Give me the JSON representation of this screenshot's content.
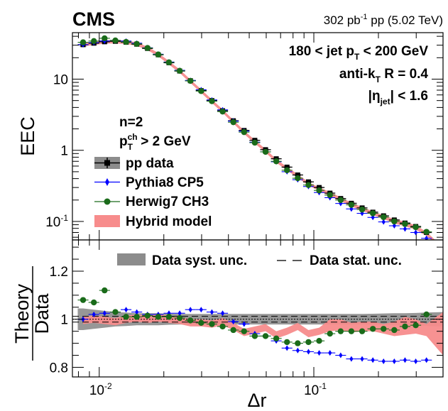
{
  "chart_data": {
    "type": "scatter",
    "experiment": "CMS",
    "lumi": {
      "value": "302 pb",
      "exp": "-1",
      "rest": " pp (5.02 TeV)"
    },
    "selection": {
      "pt_range": {
        "left": "180 < jet p",
        "sub": "T",
        "right": " < 200 GeV"
      },
      "algo": {
        "left": "anti-k",
        "sub": "T",
        "right": " R = 0.4"
      },
      "eta": {
        "left": "|η",
        "sub": "jet",
        "right": "| < 1.6"
      }
    },
    "n_label": "n=2",
    "ptch_label": {
      "p": "p",
      "sup": "ch",
      "sub": "T",
      "rest": " > 2 GeV"
    },
    "legend": [
      {
        "name": "pp data",
        "color": "#000000",
        "style": "data"
      },
      {
        "name": "Pythia8 CP5",
        "color": "#0000ff",
        "style": "diamond"
      },
      {
        "name": "Herwig7 CH3",
        "color": "#1a6b1a",
        "style": "circle"
      },
      {
        "name": "Hybrid model",
        "color": "#f78c8c",
        "style": "band"
      }
    ],
    "legend_ratio": [
      {
        "name": "Data syst. unc.",
        "style": "gray-band"
      },
      {
        "name": "Data stat. unc.",
        "style": "dash"
      }
    ],
    "xlabel": "Δr",
    "ylabel_top": "EEC",
    "ylabel_ratio": {
      "num": "Theory",
      "den": "Data"
    },
    "xlim": [
      0.0075,
      0.4
    ],
    "ylim_top": [
      0.055,
      45
    ],
    "ylim_ratio": [
      0.76,
      1.33
    ],
    "x_ticks": [
      {
        "v": 0.01,
        "base": "10",
        "exp": "-2"
      },
      {
        "v": 0.1,
        "base": "10",
        "exp": "-1"
      }
    ],
    "y_ticks_top": [
      {
        "v": 0.1,
        "base": "10",
        "exp": "-1"
      },
      {
        "v": 1,
        "label": "1"
      },
      {
        "v": 10,
        "label": "10"
      }
    ],
    "y_ticks_ratio": [
      {
        "v": 0.8,
        "label": "0.8"
      },
      {
        "v": 1,
        "label": "1"
      },
      {
        "v": 1.2,
        "label": "1.2"
      }
    ],
    "bins": [
      0.00794,
      0.00891,
      0.01,
      0.01122,
      0.01259,
      0.01413,
      0.01585,
      0.01778,
      0.01995,
      0.02239,
      0.02512,
      0.02818,
      0.03162,
      0.03548,
      0.03981,
      0.04467,
      0.05012,
      0.05623,
      0.0631,
      0.07079,
      0.07943,
      0.08913,
      0.1,
      0.1122,
      0.1259,
      0.1413,
      0.1585,
      0.1778,
      0.1995,
      0.2239,
      0.2512,
      0.2818,
      0.3162,
      0.3548
    ],
    "x": [
      0.00841,
      0.00944,
      0.01059,
      0.01189,
      0.01334,
      0.01496,
      0.01679,
      0.01884,
      0.02113,
      0.02371,
      0.0266,
      0.02985,
      0.03349,
      0.03758,
      0.04217,
      0.04732,
      0.05309,
      0.05957,
      0.06683,
      0.07499,
      0.08414,
      0.09441,
      0.1059,
      0.1189,
      0.1334,
      0.1496,
      0.1679,
      0.1884,
      0.2113,
      0.2371,
      0.266,
      0.2985,
      0.3349
    ],
    "series": [
      {
        "name": "pp data",
        "values": [
          30.5,
          32,
          33.5,
          34,
          33,
          31,
          27,
          22,
          17,
          13,
          9.5,
          6.9,
          5,
          3.6,
          2.6,
          1.9,
          1.38,
          1.02,
          0.76,
          0.58,
          0.45,
          0.36,
          0.3,
          0.25,
          0.21,
          0.18,
          0.155,
          0.135,
          0.12,
          0.105,
          0.095,
          0.085,
          0.07
        ]
      },
      {
        "name": "Pythia8 CP5",
        "values": [
          30.5,
          32.6,
          34.4,
          35.0,
          34.3,
          32.0,
          27.6,
          22.4,
          17.4,
          13.3,
          9.6,
          7.1,
          5.1,
          3.7,
          2.57,
          1.86,
          1.3,
          0.95,
          0.69,
          0.5,
          0.386,
          0.31,
          0.255,
          0.216,
          0.179,
          0.15,
          0.13,
          0.114,
          0.0986,
          0.087,
          0.0786,
          0.07,
          0.058
        ]
      },
      {
        "name": "Herwig7 CH3",
        "values": [
          32.9,
          34.3,
          37.5,
          35.0,
          33.3,
          31.3,
          27.4,
          22.2,
          17.2,
          13.1,
          9.45,
          6.8,
          4.9,
          3.5,
          2.48,
          1.8,
          1.28,
          0.95,
          0.7,
          0.525,
          0.405,
          0.325,
          0.273,
          0.235,
          0.2,
          0.171,
          0.147,
          0.13,
          0.115,
          0.1,
          0.092,
          0.083,
          0.0714
        ]
      }
    ],
    "ratio_series": [
      {
        "name": "Pythia8 CP5",
        "values": [
          1.0,
          1.02,
          1.025,
          1.03,
          1.04,
          1.03,
          1.02,
          1.02,
          1.025,
          1.025,
          1.04,
          1.04,
          1.03,
          1.025,
          0.99,
          0.98,
          0.94,
          0.93,
          0.91,
          0.88,
          0.87,
          0.865,
          0.86,
          0.86,
          0.85,
          0.835,
          0.835,
          0.83,
          0.825,
          0.825,
          0.83,
          0.825,
          0.83
        ]
      },
      {
        "name": "Herwig7 CH3",
        "values": [
          1.08,
          1.07,
          1.12,
          1.03,
          1.01,
          1.01,
          1.015,
          1.01,
          1.01,
          1.005,
          0.995,
          0.985,
          0.98,
          0.97,
          0.955,
          0.95,
          0.93,
          0.93,
          0.92,
          0.905,
          0.9,
          0.905,
          0.91,
          0.94,
          0.95,
          0.95,
          0.95,
          0.96,
          0.96,
          0.955,
          0.97,
          0.975,
          1.02
        ]
      },
      {
        "name": "Hybrid model",
        "low": [
          0.98,
          0.985,
          0.98,
          0.975,
          0.985,
          0.99,
          0.985,
          0.99,
          0.985,
          0.98,
          0.97,
          0.97,
          0.965,
          0.975,
          0.955,
          0.93,
          0.94,
          0.95,
          0.92,
          0.935,
          0.955,
          0.925,
          0.935,
          0.95,
          0.955,
          0.945,
          0.95,
          0.95,
          0.94,
          0.93,
          0.935,
          0.94,
          0.93
        ],
        "high": [
          1.01,
          1.015,
          1.01,
          1.005,
          1.015,
          1.02,
          1.015,
          1.02,
          1.015,
          1.01,
          1.0,
          1.0,
          0.995,
          1.005,
          0.985,
          0.96,
          0.97,
          0.98,
          0.95,
          0.965,
          0.985,
          0.955,
          0.965,
          1.0,
          1.0,
          0.985,
          0.99,
          0.99,
          0.98,
          0.99,
          1.01,
          1.0,
          0.98
        ]
      }
    ],
    "data_syst_ratio": [
      0.045,
      0.04,
      0.035,
      0.03,
      0.028,
      0.025,
      0.025,
      0.025,
      0.023,
      0.022,
      0.022,
      0.022,
      0.022,
      0.022,
      0.022,
      0.022,
      0.022,
      0.022,
      0.022,
      0.022,
      0.022,
      0.022,
      0.022,
      0.022,
      0.022,
      0.022,
      0.022,
      0.023,
      0.024,
      0.025,
      0.025,
      0.026,
      0.028
    ],
    "data_stat_ratio": 0.012
  },
  "colors": {
    "data": "#000000",
    "pythia": "#0000ff",
    "herwig": "#1a6b1a",
    "hybrid": "#f78c8c",
    "syst": "#8c8c8c"
  }
}
